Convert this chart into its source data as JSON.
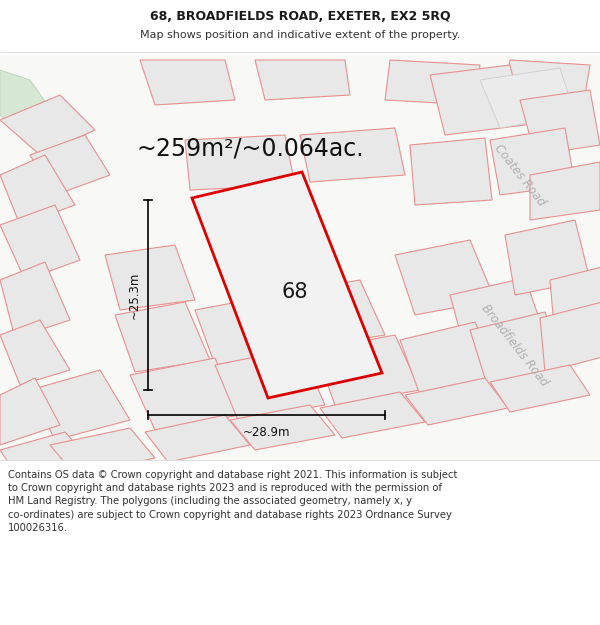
{
  "title_line1": "68, BROADFIELDS ROAD, EXETER, EX2 5RQ",
  "title_line2": "Map shows position and indicative extent of the property.",
  "area_text": "~259m²/~0.064ac.",
  "label_68": "68",
  "dim_vertical": "~25.3m",
  "dim_horizontal": "~28.9m",
  "road_label_coates": "Coates Road",
  "road_label_broadfields": "Broadfields Road",
  "footer_text": "Contains OS data © Crown copyright and database right 2021. This information is subject\nto Crown copyright and database rights 2023 and is reproduced with the permission of\nHM Land Registry. The polygons (including the associated geometry, namely x, y\nco-ordinates) are subject to Crown copyright and database rights 2023 Ordnance Survey\n100026316.",
  "bg_white": "#ffffff",
  "map_bg": "#f7f7f5",
  "plot_fill": "#f2f2f2",
  "plot_stroke": "#dd0000",
  "other_fill": "#e8e8e8",
  "other_stroke": "#e89090",
  "green_fill": "#d4e8d4",
  "green_stroke": "#c0d4c0",
  "title_fontsize": 9.0,
  "subtitle_fontsize": 8.0,
  "area_fontsize": 17,
  "label_fontsize": 15,
  "dim_fontsize": 8.5,
  "road_label_fontsize": 8.5,
  "footer_fontsize": 7.2
}
